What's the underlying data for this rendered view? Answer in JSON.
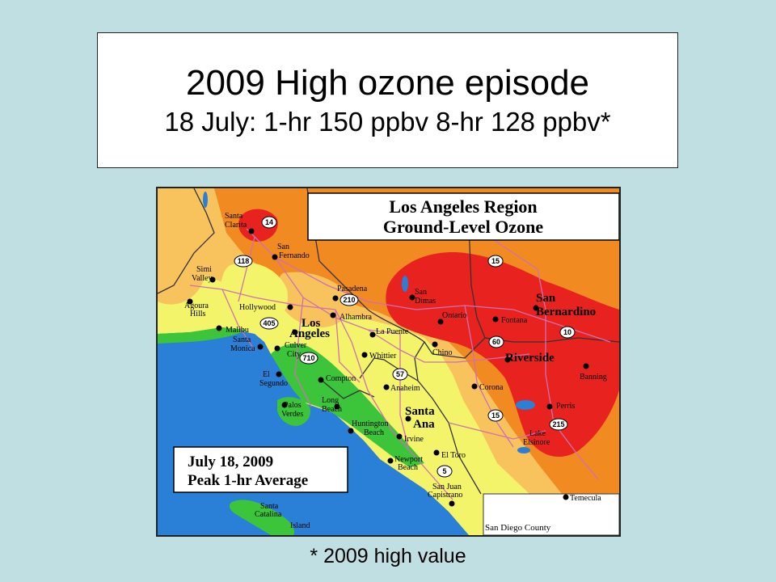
{
  "slide": {
    "title": "2009 High ozone episode",
    "subtitle": "18 July: 1-hr 150 ppbv 8-hr 128 ppbv*",
    "footnote": "* 2009 high value"
  },
  "map": {
    "header_line1": "Los Angeles Region",
    "header_line2": "Ground-Level Ozone",
    "date_box_line1": "July 18, 2009",
    "date_box_line2": "Peak 1-hr Average",
    "county_label": "San Diego County",
    "colors": {
      "ocean": "#2a7fd6",
      "green": "#3cc43a",
      "yellow": "#f4f46a",
      "light_orange": "#f8c35c",
      "orange": "#f28a22",
      "red": "#e8221f",
      "road": "#d070b0",
      "county_line": "#333333"
    },
    "cities": [
      {
        "name": "Santa Clarita"
      },
      {
        "name": "San Fernando"
      },
      {
        "name": "Simi Valley"
      },
      {
        "name": "Agoura Hills"
      },
      {
        "name": "Malibu"
      },
      {
        "name": "Hollywood"
      },
      {
        "name": "Pasadena"
      },
      {
        "name": "Alhambra"
      },
      {
        "name": "San Dimas"
      },
      {
        "name": "Ontario"
      },
      {
        "name": "Fontana"
      },
      {
        "name": "San Bernardino"
      },
      {
        "name": "Los Angeles"
      },
      {
        "name": "Santa Monica"
      },
      {
        "name": "Culver City"
      },
      {
        "name": "La Puente"
      },
      {
        "name": "Chino"
      },
      {
        "name": "Riverside"
      },
      {
        "name": "Whittier"
      },
      {
        "name": "El Segundo"
      },
      {
        "name": "Compton"
      },
      {
        "name": "Banning"
      },
      {
        "name": "Anaheim"
      },
      {
        "name": "Corona"
      },
      {
        "name": "Palos Verdes"
      },
      {
        "name": "Long Beach"
      },
      {
        "name": "Santa Ana"
      },
      {
        "name": "Perris"
      },
      {
        "name": "Huntington Beach"
      },
      {
        "name": "Irvine"
      },
      {
        "name": "Lake Elsinore"
      },
      {
        "name": "El Toro"
      },
      {
        "name": "Newport Beach"
      },
      {
        "name": "San Juan Capistrano"
      },
      {
        "name": "Temecula"
      },
      {
        "name": "Santa Catalina Island"
      }
    ],
    "highway_shields": [
      "14",
      "118",
      "15",
      "210",
      "405",
      "10",
      "60",
      "710",
      "57",
      "15",
      "215",
      "5"
    ]
  }
}
